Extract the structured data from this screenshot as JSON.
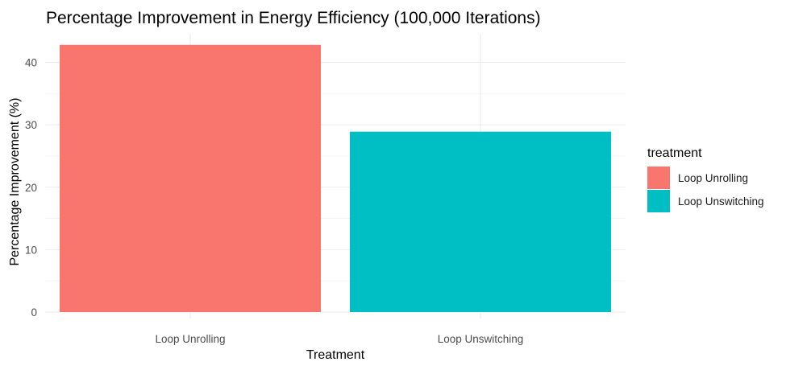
{
  "chart_data": {
    "type": "bar",
    "title": "Percentage Improvement in Energy Efficiency (100,000 Iterations)",
    "xlabel": "Treatment",
    "ylabel": "Percentage Improvement (%)",
    "categories": [
      "Loop Unrolling",
      "Loop Unswitching"
    ],
    "values": [
      42.8,
      28.9
    ],
    "colors": [
      "#F8766D",
      "#00BFC4"
    ],
    "ylim": [
      0,
      44
    ],
    "yticks": [
      0,
      10,
      20,
      30,
      40
    ],
    "grid": true,
    "legend": {
      "title": "treatment",
      "position": "right",
      "entries": [
        "Loop Unrolling",
        "Loop Unswitching"
      ]
    }
  }
}
